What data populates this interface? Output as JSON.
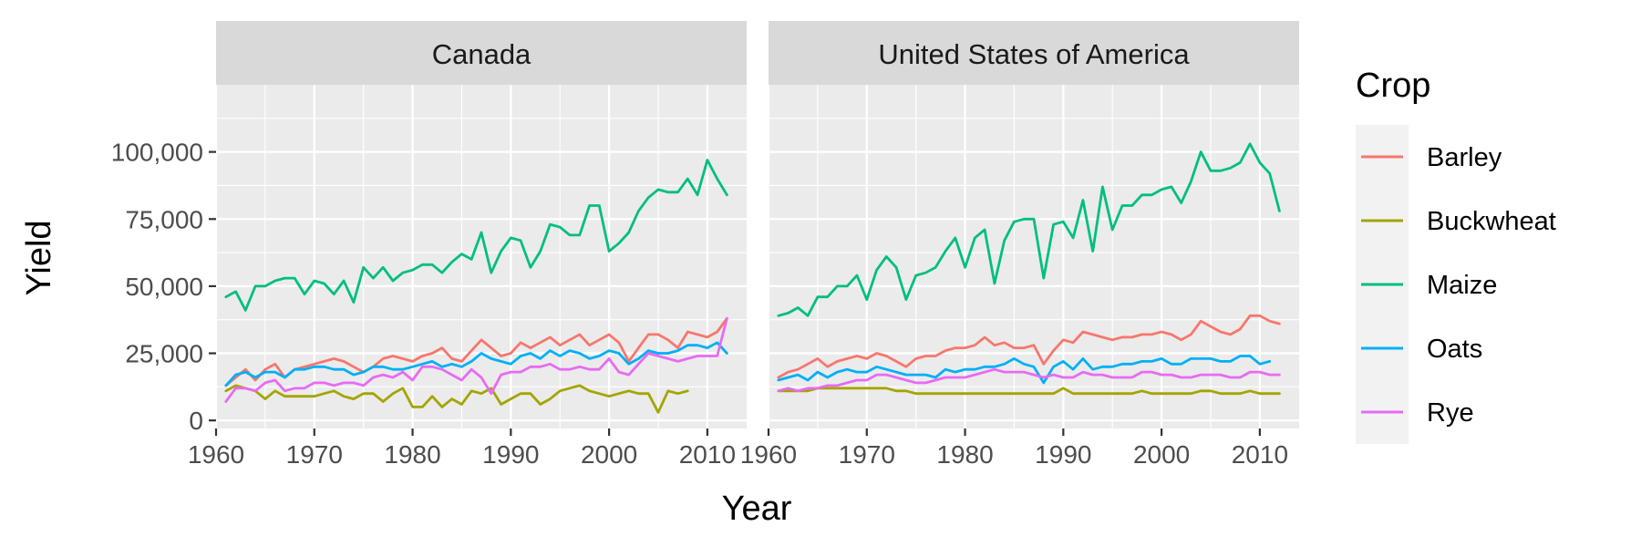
{
  "chart_data": {
    "type": "line",
    "facets": [
      "Canada",
      "United States of America"
    ],
    "xlabel": "Year",
    "ylabel": "Yield",
    "xlim": [
      1960,
      2014
    ],
    "ylim": [
      -3000,
      125000
    ],
    "x_ticks": [
      1960,
      1970,
      1980,
      1990,
      2000,
      2010
    ],
    "x_tick_labels": [
      "1960",
      "1970",
      "1980",
      "1990",
      "2000",
      "2010"
    ],
    "y_ticks": [
      0,
      25000,
      50000,
      75000,
      100000
    ],
    "y_tick_labels": [
      "0",
      "25,000",
      "50,000",
      "75,000",
      "100,000"
    ],
    "grid": true,
    "legend": {
      "title": "Crop",
      "position": "right",
      "entries": [
        "Barley",
        "Buckwheat",
        "Maize",
        "Oats",
        "Rye"
      ]
    },
    "colors": {
      "Barley": "#F8766D",
      "Buckwheat": "#A3A500",
      "Maize": "#00BF7D",
      "Oats": "#00B0F6",
      "Rye": "#E76BF3"
    },
    "x": [
      1961,
      1962,
      1963,
      1964,
      1965,
      1966,
      1967,
      1968,
      1969,
      1970,
      1971,
      1972,
      1973,
      1974,
      1975,
      1976,
      1977,
      1978,
      1979,
      1980,
      1981,
      1982,
      1983,
      1984,
      1985,
      1986,
      1987,
      1988,
      1989,
      1990,
      1991,
      1992,
      1993,
      1994,
      1995,
      1996,
      1997,
      1998,
      1999,
      2000,
      2001,
      2002,
      2003,
      2004,
      2005,
      2006,
      2007,
      2008,
      2009,
      2010,
      2011,
      2012
    ],
    "series": [
      {
        "facet": "Canada",
        "name": "Barley",
        "values": [
          13000,
          16000,
          19000,
          15000,
          19000,
          21000,
          16000,
          19000,
          20000,
          21000,
          22000,
          23000,
          22000,
          20000,
          18000,
          20000,
          23000,
          24000,
          23000,
          22000,
          24000,
          25000,
          27000,
          23000,
          22000,
          26000,
          30000,
          27000,
          24000,
          25000,
          29000,
          27000,
          29000,
          31000,
          28000,
          30000,
          32000,
          28000,
          30000,
          32000,
          29000,
          22000,
          27000,
          32000,
          32000,
          30000,
          27000,
          33000,
          32000,
          31000,
          33000,
          38000
        ]
      },
      {
        "facet": "Canada",
        "name": "Buckwheat",
        "values": [
          11000,
          13000,
          12000,
          11000,
          8000,
          11000,
          9000,
          9000,
          9000,
          9000,
          10000,
          11000,
          9000,
          8000,
          10000,
          10000,
          7000,
          10000,
          12000,
          5000,
          5000,
          9000,
          5000,
          8000,
          6000,
          11000,
          10000,
          12000,
          6000,
          8000,
          10000,
          10000,
          6000,
          8000,
          11000,
          12000,
          13000,
          11000,
          10000,
          9000,
          10000,
          11000,
          10000,
          10000,
          3000,
          11000,
          10000,
          11000,
          null,
          null,
          null,
          null
        ]
      },
      {
        "facet": "Canada",
        "name": "Maize",
        "values": [
          46000,
          48000,
          41000,
          50000,
          50000,
          52000,
          53000,
          53000,
          47000,
          52000,
          51000,
          47000,
          52000,
          44000,
          57000,
          53000,
          57000,
          52000,
          55000,
          56000,
          58000,
          58000,
          55000,
          59000,
          62000,
          60000,
          70000,
          55000,
          63000,
          68000,
          67000,
          57000,
          63000,
          73000,
          72000,
          69000,
          69000,
          80000,
          80000,
          63000,
          66000,
          70000,
          78000,
          83000,
          86000,
          85000,
          85000,
          90000,
          84000,
          97000,
          90000,
          84000
        ]
      },
      {
        "facet": "Canada",
        "name": "Oats",
        "values": [
          13000,
          17000,
          18000,
          16000,
          18000,
          18000,
          16000,
          19000,
          19000,
          20000,
          20000,
          19000,
          19000,
          17000,
          18000,
          20000,
          20000,
          19000,
          19000,
          20000,
          21000,
          22000,
          20000,
          21000,
          20000,
          22000,
          25000,
          23000,
          22000,
          21000,
          24000,
          25000,
          23000,
          26000,
          24000,
          26000,
          25000,
          23000,
          24000,
          26000,
          25000,
          21000,
          23000,
          26000,
          25000,
          25000,
          26000,
          28000,
          28000,
          27000,
          29000,
          25000
        ]
      },
      {
        "facet": "Canada",
        "name": "Rye",
        "values": [
          7000,
          12000,
          12000,
          11000,
          14000,
          15000,
          11000,
          12000,
          12000,
          14000,
          14000,
          13000,
          14000,
          14000,
          13000,
          16000,
          17000,
          16000,
          18000,
          15000,
          20000,
          20000,
          19000,
          17000,
          15000,
          19000,
          16000,
          10000,
          17000,
          18000,
          18000,
          20000,
          20000,
          21000,
          19000,
          19000,
          20000,
          19000,
          19000,
          23000,
          18000,
          17000,
          21000,
          25000,
          24000,
          23000,
          22000,
          23000,
          24000,
          24000,
          24000,
          38000
        ]
      },
      {
        "facet": "United States of America",
        "name": "Barley",
        "values": [
          16000,
          18000,
          19000,
          21000,
          23000,
          20000,
          22000,
          23000,
          24000,
          23000,
          25000,
          24000,
          22000,
          20000,
          23000,
          24000,
          24000,
          26000,
          27000,
          27000,
          28000,
          31000,
          28000,
          29000,
          27000,
          27000,
          28000,
          21000,
          26000,
          30000,
          29000,
          33000,
          32000,
          31000,
          30000,
          31000,
          31000,
          32000,
          32000,
          33000,
          32000,
          30000,
          32000,
          37000,
          35000,
          33000,
          32000,
          34000,
          39000,
          39000,
          37000,
          36000
        ]
      },
      {
        "facet": "United States of America",
        "name": "Buckwheat",
        "values": [
          11000,
          11000,
          11000,
          11000,
          12000,
          12000,
          12000,
          12000,
          12000,
          12000,
          12000,
          12000,
          11000,
          11000,
          10000,
          10000,
          10000,
          10000,
          10000,
          10000,
          10000,
          10000,
          10000,
          10000,
          10000,
          10000,
          10000,
          10000,
          10000,
          12000,
          10000,
          10000,
          10000,
          10000,
          10000,
          10000,
          10000,
          11000,
          10000,
          10000,
          10000,
          10000,
          10000,
          11000,
          11000,
          10000,
          10000,
          10000,
          11000,
          10000,
          10000,
          10000
        ]
      },
      {
        "facet": "United States of America",
        "name": "Maize",
        "values": [
          39000,
          40000,
          42000,
          39000,
          46000,
          46000,
          50000,
          50000,
          54000,
          45000,
          56000,
          61000,
          57000,
          45000,
          54000,
          55000,
          57000,
          63000,
          68000,
          57000,
          68000,
          71000,
          51000,
          67000,
          74000,
          75000,
          75000,
          53000,
          73000,
          74000,
          68000,
          82000,
          63000,
          87000,
          71000,
          80000,
          80000,
          84000,
          84000,
          86000,
          87000,
          81000,
          89000,
          100000,
          93000,
          93000,
          94000,
          96000,
          103000,
          96000,
          92000,
          78000
        ]
      },
      {
        "facet": "United States of America",
        "name": "Oats",
        "values": [
          15000,
          16000,
          17000,
          15000,
          18000,
          16000,
          18000,
          19000,
          18000,
          18000,
          20000,
          19000,
          18000,
          17000,
          17000,
          17000,
          16000,
          19000,
          18000,
          19000,
          19000,
          20000,
          20000,
          21000,
          23000,
          21000,
          20000,
          14000,
          20000,
          22000,
          19000,
          23000,
          19000,
          20000,
          20000,
          21000,
          21000,
          22000,
          22000,
          23000,
          21000,
          21000,
          23000,
          23000,
          23000,
          22000,
          22000,
          24000,
          24000,
          21000,
          22000,
          null
        ]
      },
      {
        "facet": "United States of America",
        "name": "Rye",
        "values": [
          11000,
          12000,
          11000,
          12000,
          12000,
          13000,
          13000,
          14000,
          15000,
          15000,
          17000,
          17000,
          16000,
          15000,
          14000,
          14000,
          15000,
          16000,
          16000,
          16000,
          17000,
          18000,
          19000,
          18000,
          18000,
          18000,
          17000,
          16000,
          17000,
          16000,
          16000,
          18000,
          17000,
          17000,
          16000,
          16000,
          16000,
          18000,
          18000,
          17000,
          17000,
          16000,
          16000,
          17000,
          17000,
          17000,
          16000,
          16000,
          18000,
          18000,
          17000,
          17000
        ]
      }
    ]
  }
}
